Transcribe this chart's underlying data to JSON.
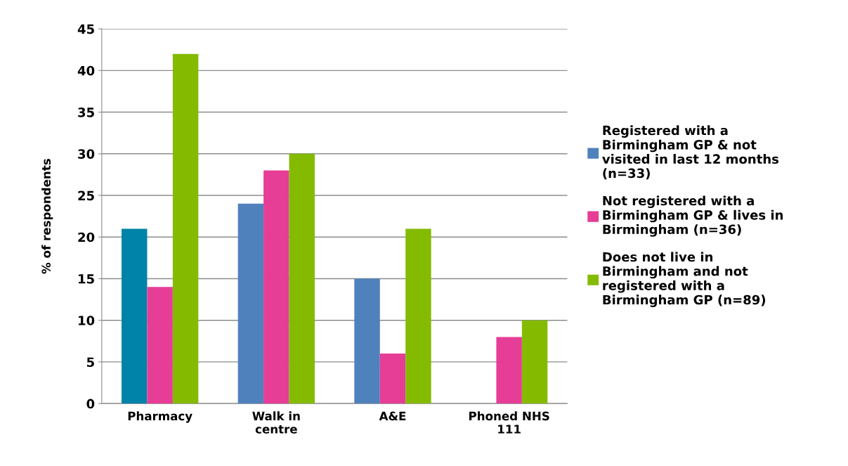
{
  "chart_data": {
    "type": "bar",
    "ylabel": "% of respondents",
    "categories": [
      "Pharmacy",
      "Walk in\ncentre",
      "A&E",
      "Phoned NHS\n111"
    ],
    "series": [
      {
        "name": "Registered with a\nBirmingham GP & not\nvisited in last 12 months\n(n=33)",
        "color": "#4f81bd",
        "colors": [
          "#0083a8",
          "#4f81bd",
          "#4f81bd",
          "#4f81bd"
        ],
        "values": [
          21,
          24,
          15,
          0
        ]
      },
      {
        "name": "Not registered with a\nBirmingham GP & lives in\nBirmingham (n=36)",
        "color": "#e63d96",
        "values": [
          14,
          28,
          6,
          8
        ]
      },
      {
        "name": "Does not live in\nBirmingham and not\nregistered with a\nBirmingham GP (n=89)",
        "color": "#84bb00",
        "values": [
          42,
          30,
          21,
          10
        ]
      }
    ],
    "ylim": [
      0,
      45
    ],
    "yticks": [
      0,
      5,
      10,
      15,
      20,
      25,
      30,
      35,
      40,
      45
    ],
    "grid": "y",
    "legend": "right"
  }
}
